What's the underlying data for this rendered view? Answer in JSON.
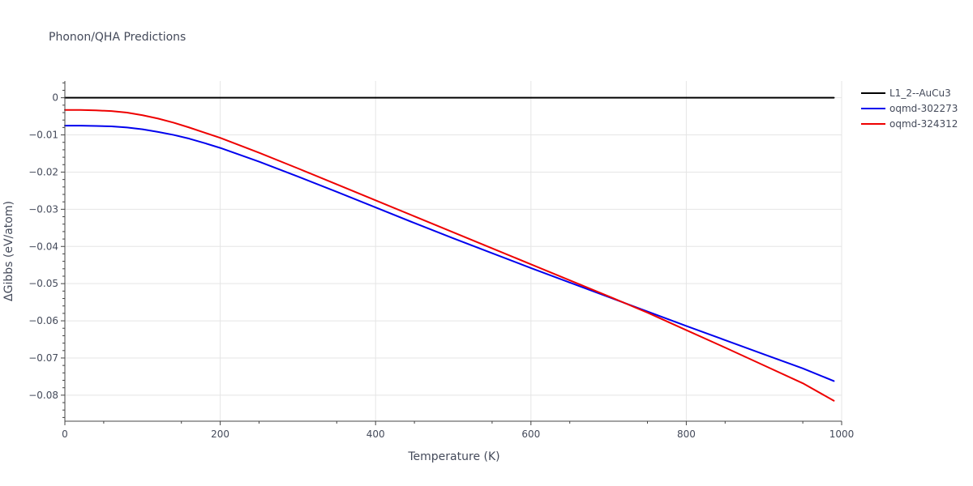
{
  "chart_data": {
    "type": "line",
    "title": "Phonon/QHA Predictions",
    "xlabel": "Temperature (K)",
    "ylabel": "ΔGibbs (eV/atom)",
    "xlim": [
      0,
      1000
    ],
    "ylim": [
      -0.087,
      0.0045
    ],
    "x_ticks": [
      0,
      200,
      400,
      600,
      800,
      1000
    ],
    "y_ticks": [
      0,
      -0.01,
      -0.02,
      -0.03,
      -0.04,
      -0.05,
      -0.06,
      -0.07,
      -0.08
    ],
    "x_tick_labels": [
      "0",
      "200",
      "400",
      "600",
      "800",
      "1000"
    ],
    "y_tick_labels": [
      "0",
      "−0.01",
      "−0.02",
      "−0.03",
      "−0.04",
      "−0.05",
      "−0.06",
      "−0.07",
      "−0.08"
    ],
    "grid": true,
    "legend_position": "top-right outside",
    "series": [
      {
        "name": "L1_2--AuCu3",
        "color": "#000000",
        "x": [
          0,
          990
        ],
        "y": [
          0,
          0
        ]
      },
      {
        "name": "oqmd-302273",
        "color": "#0000ee",
        "x": [
          0,
          20,
          40,
          60,
          80,
          100,
          120,
          140,
          160,
          180,
          200,
          250,
          300,
          350,
          400,
          450,
          500,
          550,
          600,
          650,
          700,
          750,
          800,
          850,
          900,
          950,
          990
        ],
        "y": [
          -0.0075,
          -0.0075,
          -0.0076,
          -0.0077,
          -0.008,
          -0.0085,
          -0.0092,
          -0.01,
          -0.011,
          -0.0122,
          -0.0135,
          -0.0172,
          -0.0212,
          -0.0253,
          -0.0295,
          -0.0337,
          -0.0378,
          -0.0418,
          -0.0458,
          -0.0497,
          -0.0536,
          -0.0575,
          -0.0614,
          -0.0652,
          -0.069,
          -0.0728,
          -0.0762
        ]
      },
      {
        "name": "oqmd-324312",
        "color": "#ee0000",
        "x": [
          0,
          20,
          40,
          60,
          80,
          100,
          120,
          140,
          160,
          180,
          200,
          250,
          300,
          350,
          400,
          450,
          500,
          550,
          600,
          650,
          700,
          750,
          800,
          850,
          900,
          950,
          990
        ],
        "y": [
          -0.0033,
          -0.0033,
          -0.0034,
          -0.0036,
          -0.004,
          -0.0047,
          -0.0056,
          -0.0067,
          -0.008,
          -0.0094,
          -0.0108,
          -0.0148,
          -0.019,
          -0.0233,
          -0.0276,
          -0.0319,
          -0.0362,
          -0.0405,
          -0.0448,
          -0.0491,
          -0.0534,
          -0.0578,
          -0.0625,
          -0.0672,
          -0.072,
          -0.0768,
          -0.0815
        ]
      }
    ]
  }
}
